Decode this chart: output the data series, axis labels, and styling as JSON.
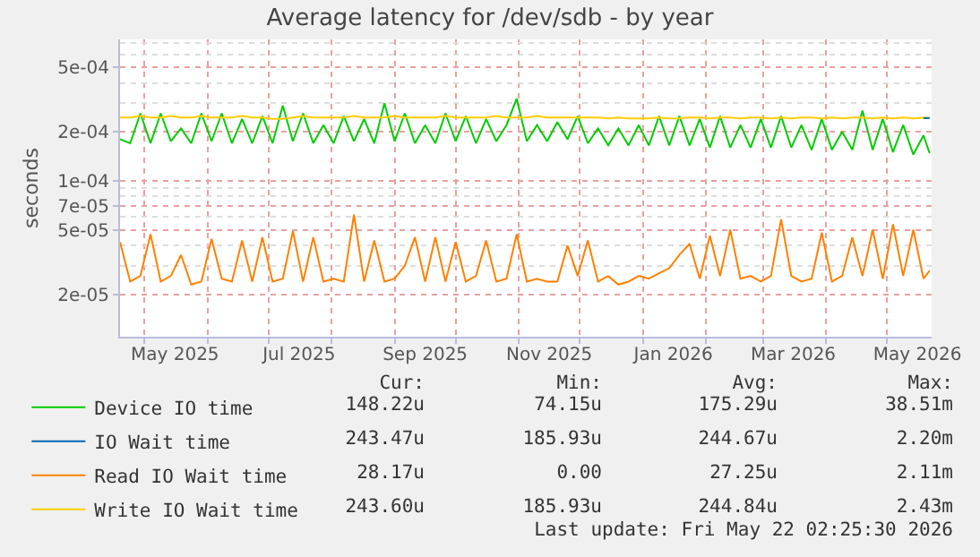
{
  "chart_data": {
    "type": "line",
    "title": "Average latency for /dev/sdb - by year",
    "ylabel": "seconds",
    "log": "y",
    "grid": true,
    "legend": "bottom left",
    "marker": "none",
    "line_style": "solid",
    "xlim": [
      "2025-04-19",
      "2026-05-23"
    ],
    "xticks": [
      {
        "value": "2025-05-01",
        "label": null
      },
      {
        "value": "2025-06-01",
        "label": null
      },
      {
        "value": "2025-07-01",
        "label": null
      },
      {
        "value": "2025-08-01",
        "label": null
      },
      {
        "value": "2025-09-01",
        "label": null
      },
      {
        "value": "2025-10-01",
        "label": null
      },
      {
        "value": "2025-11-01",
        "label": null
      },
      {
        "value": "2025-12-01",
        "label": null
      },
      {
        "value": "2026-01-01",
        "label": null
      },
      {
        "value": "2026-02-01",
        "label": null
      },
      {
        "value": "2026-03-01",
        "label": null
      },
      {
        "value": "2026-04-01",
        "label": null
      },
      {
        "value": "2026-05-01",
        "label": null
      },
      {
        "value": "2025-05-16",
        "label": "May 2025"
      },
      {
        "value": "2025-07-16",
        "label": "Jul 2025"
      },
      {
        "value": "2025-09-16",
        "label": "Sep 2025"
      },
      {
        "value": "2025-11-16",
        "label": "Nov 2025"
      },
      {
        "value": "2026-01-16",
        "label": "Jan 2026"
      },
      {
        "value": "2026-03-16",
        "label": "Mar 2026"
      },
      {
        "value": "2026-05-16",
        "label": "May 2026"
      }
    ],
    "ylim": [
      1.1e-05,
      0.00074
    ],
    "yticks": [
      {
        "value": 2e-05,
        "label": "2e-05"
      },
      {
        "value": 3e-05,
        "label": null
      },
      {
        "value": 4e-05,
        "label": null
      },
      {
        "value": 5e-05,
        "label": "5e-05"
      },
      {
        "value": 6e-05,
        "label": null
      },
      {
        "value": 7e-05,
        "label": "7e-05"
      },
      {
        "value": 8e-05,
        "label": null
      },
      {
        "value": 9e-05,
        "label": null
      },
      {
        "value": 0.0001,
        "label": "1e-04"
      },
      {
        "value": 0.0002,
        "label": "2e-04"
      },
      {
        "value": 0.0003,
        "label": null
      },
      {
        "value": 0.0004,
        "label": null
      },
      {
        "value": 0.0005,
        "label": "5e-04"
      },
      {
        "value": 0.0006,
        "label": null
      },
      {
        "value": 0.0007,
        "label": null
      }
    ],
    "x": [
      "2025-04-19",
      "2025-04-24",
      "2025-04-29",
      "2025-05-04",
      "2025-05-09",
      "2025-05-14",
      "2025-05-19",
      "2025-05-24",
      "2025-05-29",
      "2025-06-03",
      "2025-06-08",
      "2025-06-13",
      "2025-06-18",
      "2025-06-23",
      "2025-06-28",
      "2025-07-03",
      "2025-07-08",
      "2025-07-13",
      "2025-07-18",
      "2025-07-23",
      "2025-07-28",
      "2025-08-02",
      "2025-08-07",
      "2025-08-12",
      "2025-08-17",
      "2025-08-22",
      "2025-08-27",
      "2025-09-01",
      "2025-09-06",
      "2025-09-11",
      "2025-09-16",
      "2025-09-21",
      "2025-09-26",
      "2025-10-01",
      "2025-10-06",
      "2025-10-11",
      "2025-10-16",
      "2025-10-21",
      "2025-10-26",
      "2025-10-31",
      "2025-11-05",
      "2025-11-10",
      "2025-11-15",
      "2025-11-20",
      "2025-11-25",
      "2025-11-30",
      "2025-12-05",
      "2025-12-10",
      "2025-12-15",
      "2025-12-20",
      "2025-12-25",
      "2025-12-30",
      "2026-01-04",
      "2026-01-09",
      "2026-01-14",
      "2026-01-19",
      "2026-01-24",
      "2026-01-29",
      "2026-02-03",
      "2026-02-08",
      "2026-02-13",
      "2026-02-18",
      "2026-02-23",
      "2026-02-28",
      "2026-03-05",
      "2026-03-10",
      "2026-03-15",
      "2026-03-20",
      "2026-03-25",
      "2026-03-30",
      "2026-04-04",
      "2026-04-09",
      "2026-04-14",
      "2026-04-19",
      "2026-04-24",
      "2026-04-29",
      "2026-05-04",
      "2026-05-09",
      "2026-05-14",
      "2026-05-19",
      "2026-05-22"
    ],
    "series": [
      {
        "name": "Device IO time",
        "color": "#00cc00",
        "values": [
          0.00018,
          0.00017,
          0.00026,
          0.00017,
          0.00026,
          0.000175,
          0.00021,
          0.00017,
          0.00026,
          0.000175,
          0.00026,
          0.00017,
          0.00024,
          0.00017,
          0.00025,
          0.00017,
          0.00029,
          0.000175,
          0.00026,
          0.00017,
          0.00022,
          0.00017,
          0.00025,
          0.000175,
          0.00024,
          0.00017,
          0.0003,
          0.000175,
          0.00026,
          0.00017,
          0.00022,
          0.00017,
          0.00026,
          0.000175,
          0.00025,
          0.00017,
          0.00024,
          0.000175,
          0.00022,
          0.00032,
          0.000175,
          0.00022,
          0.000175,
          0.00023,
          0.00018,
          0.00025,
          0.00017,
          0.00021,
          0.000165,
          0.00021,
          0.000165,
          0.00022,
          0.000165,
          0.00025,
          0.000165,
          0.00025,
          0.000165,
          0.00024,
          0.00016,
          0.00025,
          0.00016,
          0.00022,
          0.00016,
          0.00024,
          0.00016,
          0.00025,
          0.00016,
          0.00022,
          0.000155,
          0.00024,
          0.000155,
          0.0002,
          0.000155,
          0.00027,
          0.000155,
          0.00024,
          0.00015,
          0.00022,
          0.000145,
          0.00019,
          0.000148
        ]
      },
      {
        "name": "IO Wait time",
        "color": "#0066b3",
        "values": [
          null,
          null,
          null,
          null,
          null,
          null,
          null,
          null,
          null,
          null,
          null,
          null,
          null,
          null,
          null,
          null,
          null,
          null,
          null,
          null,
          null,
          null,
          null,
          null,
          null,
          null,
          null,
          null,
          null,
          null,
          null,
          null,
          null,
          null,
          null,
          null,
          null,
          null,
          null,
          null,
          null,
          null,
          null,
          null,
          null,
          null,
          null,
          null,
          null,
          null,
          null,
          null,
          null,
          null,
          null,
          null,
          null,
          null,
          null,
          null,
          null,
          null,
          null,
          null,
          null,
          null,
          null,
          null,
          null,
          null,
          null,
          null,
          null,
          null,
          null,
          null,
          null,
          null,
          null,
          0.000243,
          0.000243
        ]
      },
      {
        "name": "Read IO Wait time",
        "color": "#ff8000",
        "values": [
          4.2e-05,
          2.4e-05,
          2.6e-05,
          4.7e-05,
          2.4e-05,
          2.6e-05,
          3.5e-05,
          2.3e-05,
          2.4e-05,
          4.4e-05,
          2.5e-05,
          2.4e-05,
          4.3e-05,
          2.4e-05,
          4.5e-05,
          2.4e-05,
          2.5e-05,
          4.9e-05,
          2.4e-05,
          4.5e-05,
          2.4e-05,
          2.5e-05,
          2.4e-05,
          6.2e-05,
          2.4e-05,
          4.3e-05,
          2.4e-05,
          2.5e-05,
          3e-05,
          4.5e-05,
          2.4e-05,
          4.5e-05,
          2.4e-05,
          4.2e-05,
          2.4e-05,
          2.6e-05,
          4.3e-05,
          2.4e-05,
          2.5e-05,
          4.7e-05,
          2.4e-05,
          2.5e-05,
          2.4e-05,
          2.4e-05,
          4e-05,
          2.6e-05,
          4.3e-05,
          2.4e-05,
          2.6e-05,
          2.3e-05,
          2.4e-05,
          2.6e-05,
          2.5e-05,
          2.7e-05,
          2.9e-05,
          3.5e-05,
          4.1e-05,
          2.5e-05,
          4.6e-05,
          2.6e-05,
          5e-05,
          2.5e-05,
          2.6e-05,
          2.4e-05,
          2.6e-05,
          5.8e-05,
          2.6e-05,
          2.4e-05,
          2.5e-05,
          4.8e-05,
          2.4e-05,
          2.6e-05,
          4.5e-05,
          2.6e-05,
          5e-05,
          2.5e-05,
          5.4e-05,
          2.6e-05,
          5e-05,
          2.5e-05,
          2.8e-05
        ]
      },
      {
        "name": "Write IO Wait time",
        "color": "#ffcc00",
        "values": [
          0.000245,
          0.000245,
          0.00025,
          0.000245,
          0.000245,
          0.00025,
          0.000245,
          0.000245,
          0.00025,
          0.000245,
          0.000245,
          0.000245,
          0.00025,
          0.000245,
          0.000245,
          0.00024,
          0.00024,
          0.000245,
          0.00025,
          0.000245,
          0.000245,
          0.000245,
          0.000245,
          0.00025,
          0.000245,
          0.000245,
          0.000245,
          0.00025,
          0.000245,
          0.000245,
          0.000245,
          0.000245,
          0.00025,
          0.000245,
          0.000245,
          0.000245,
          0.000245,
          0.00025,
          0.000245,
          0.000245,
          0.000245,
          0.00025,
          0.000245,
          0.000245,
          0.000245,
          0.000245,
          0.000245,
          0.000245,
          0.000242,
          0.000245,
          0.000242,
          0.000242,
          0.000242,
          0.000245,
          0.000242,
          0.000242,
          0.000245,
          0.000245,
          0.000242,
          0.000245,
          0.000245,
          0.000242,
          0.000245,
          0.000245,
          0.000242,
          0.000245,
          0.000242,
          0.000245,
          0.000245,
          0.000242,
          0.000245,
          0.000242,
          0.000245,
          0.000245,
          0.000242,
          0.000245,
          0.000242,
          0.000245,
          0.000242,
          0.000244,
          0.000244
        ]
      }
    ],
    "annotations": [
      "Cur:",
      "Min:",
      "Avg:",
      "Max:",
      "148.22u",
      "74.15u",
      "175.29u",
      "38.51m",
      "243.47u",
      "185.93u",
      "244.67u",
      "2.20m",
      "28.17u",
      "0.00",
      "27.25u",
      "2.11m",
      "243.60u",
      "185.93u",
      "244.84u",
      "2.43m",
      "Last update: Fri May 22 02:25:30 2026"
    ]
  }
}
